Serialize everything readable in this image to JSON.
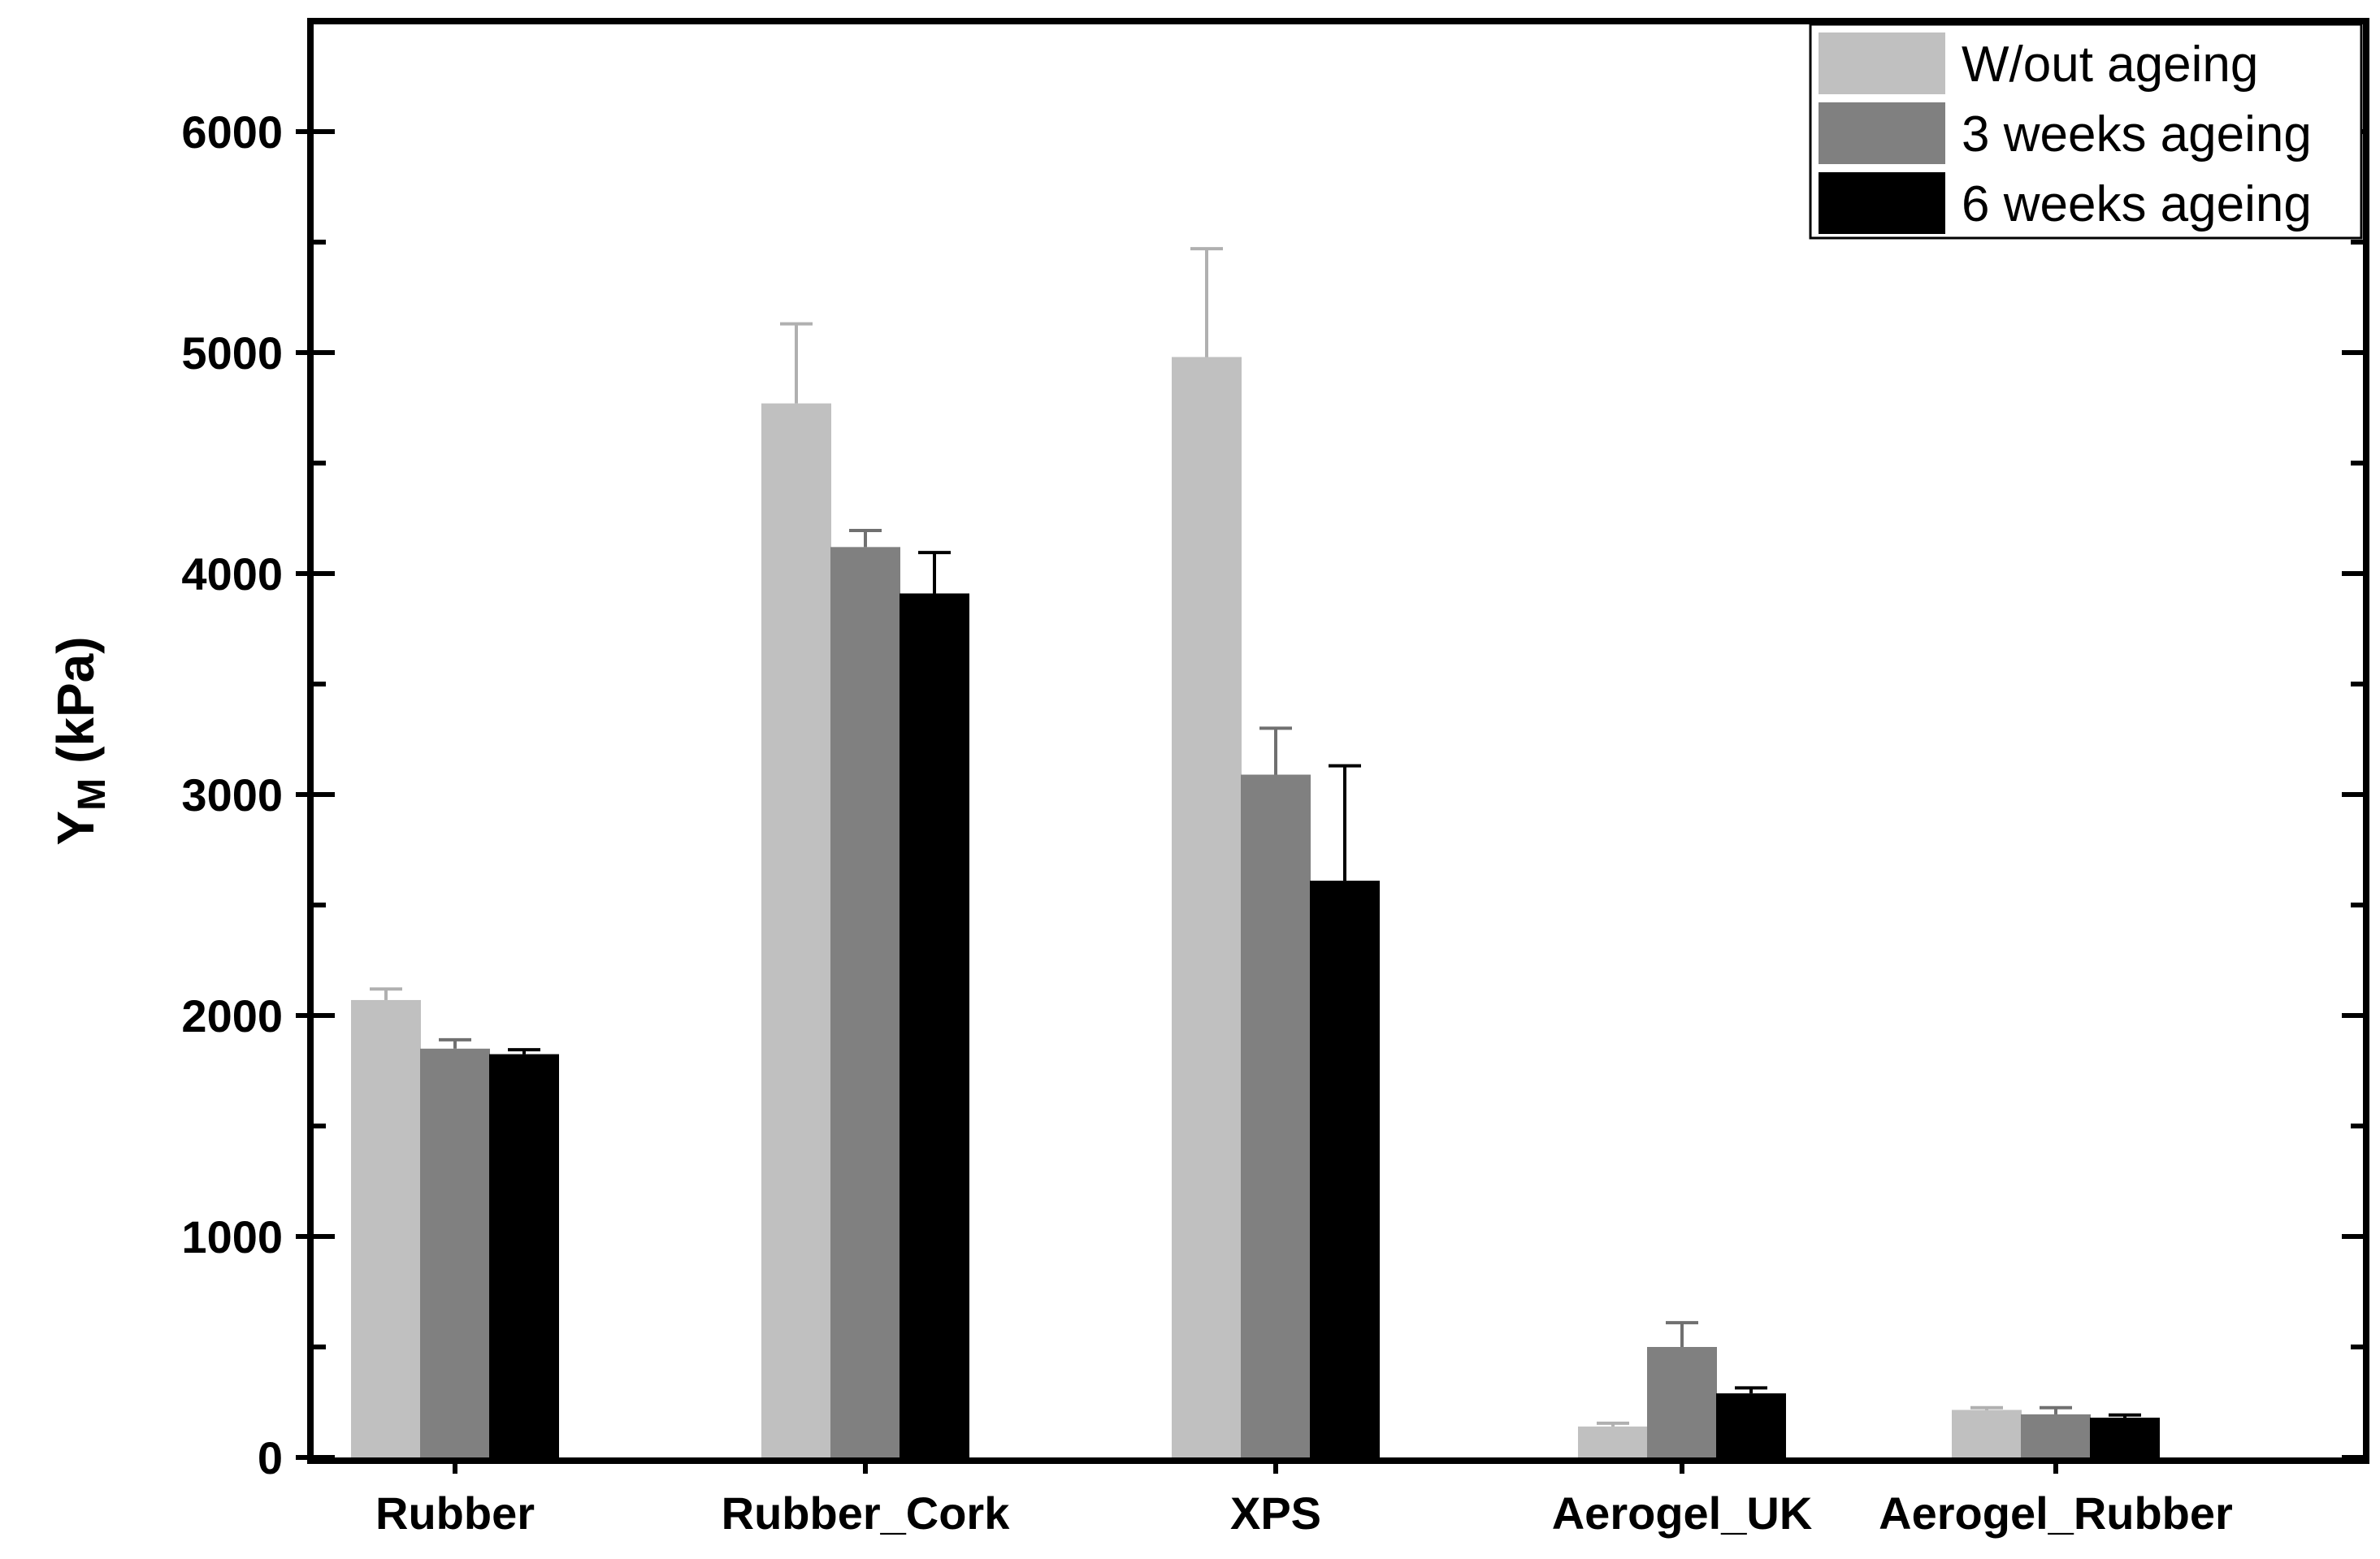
{
  "chart_data": {
    "type": "bar",
    "title": "",
    "xlabel": "",
    "ylabel": {
      "main": "Y",
      "subscript": "M",
      "unit": "(kPa)"
    },
    "ylim": [
      0,
      6500
    ],
    "yticks": [
      0,
      1000,
      2000,
      3000,
      4000,
      5000,
      6000
    ],
    "categories": [
      "Rubber",
      "Rubber_Cork",
      "XPS",
      "Aerogel_UK",
      "Aerogel_Rubber"
    ],
    "series": [
      {
        "name": "W/out ageing",
        "color": "#c0c0c0",
        "values": [
          2070,
          4770,
          4980,
          140,
          215
        ],
        "errors": [
          50,
          360,
          490,
          15,
          10
        ]
      },
      {
        "name": "3 weeks ageing",
        "color": "#808080",
        "values": [
          1850,
          4120,
          3090,
          500,
          195
        ],
        "errors": [
          40,
          75,
          210,
          110,
          30
        ]
      },
      {
        "name": "6 weeks ageing",
        "color": "#000000",
        "values": [
          1825,
          3910,
          2610,
          290,
          180
        ],
        "errors": [
          20,
          185,
          520,
          25,
          12
        ]
      }
    ],
    "grid": false,
    "legend_position": "top-right"
  }
}
